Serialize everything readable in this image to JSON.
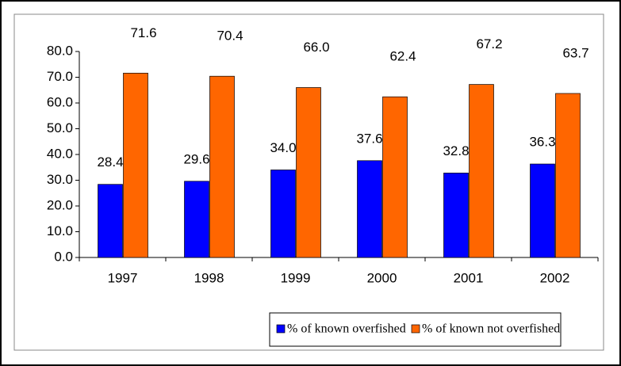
{
  "chart_data": {
    "type": "bar",
    "categories": [
      "1997",
      "1998",
      "1999",
      "2000",
      "2001",
      "2002"
    ],
    "series": [
      {
        "name": "% of known overfished",
        "color": "#0000ff",
        "values": [
          28.4,
          29.6,
          34.0,
          37.6,
          32.8,
          36.3
        ],
        "value_labels": [
          "28.4",
          "29.6",
          "34.0",
          "37.6",
          "32.8",
          "36.3"
        ]
      },
      {
        "name": "% of known not overfished",
        "color": "#ff6600",
        "values": [
          71.6,
          70.4,
          66.0,
          62.4,
          67.2,
          63.7
        ],
        "value_labels": [
          "71.6",
          "70.4",
          "66.0",
          "62.4",
          "67.2",
          "63.7"
        ]
      }
    ],
    "ylim": [
      0,
      80
    ],
    "yticks": [
      {
        "value": 0,
        "label": "0.0"
      },
      {
        "value": 10,
        "label": "10.0"
      },
      {
        "value": 20,
        "label": "20.0"
      },
      {
        "value": 30,
        "label": "30.0"
      },
      {
        "value": 40,
        "label": "40.0"
      },
      {
        "value": 50,
        "label": "50.0"
      },
      {
        "value": 60,
        "label": "60.0"
      },
      {
        "value": 70,
        "label": "70.0"
      },
      {
        "value": 80,
        "label": "80.0"
      }
    ],
    "legend": "bottom"
  }
}
